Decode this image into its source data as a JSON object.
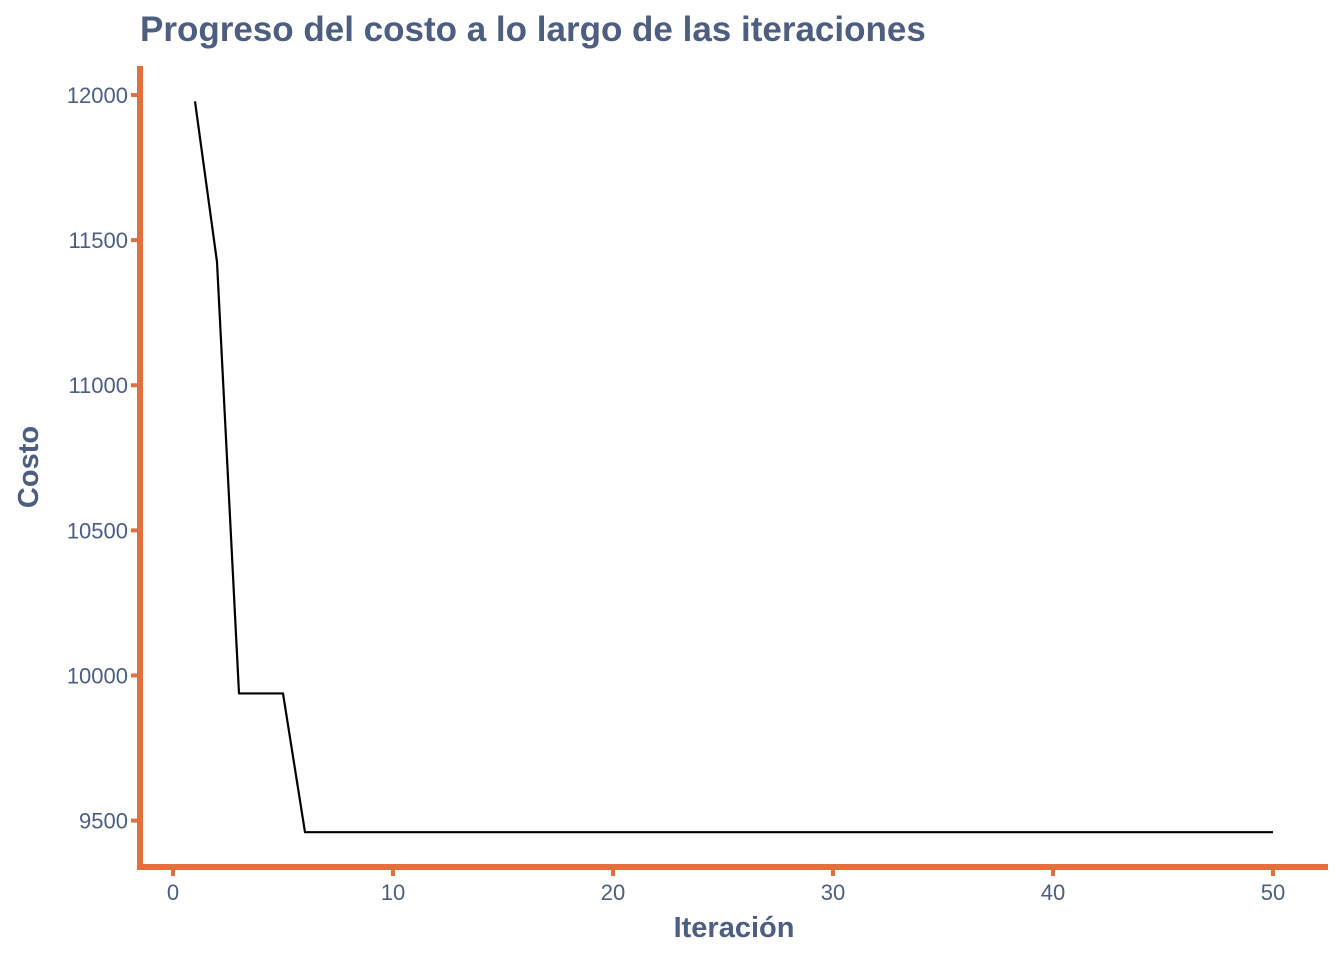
{
  "chart_data": {
    "type": "line",
    "title": "Progreso del costo a lo largo de las iteraciones",
    "xlabel": "Iteración",
    "ylabel": "Costo",
    "xlim": [
      -1.5,
      52.5
    ],
    "ylim": [
      9340,
      12100
    ],
    "x_ticks": [
      0,
      10,
      20,
      30,
      40,
      50
    ],
    "y_ticks": [
      9500,
      10000,
      10500,
      11000,
      11500,
      12000
    ],
    "grid": false,
    "legend": "none",
    "colors": {
      "text": "#4d5e80",
      "axis": "#e0703d",
      "line": "#000000",
      "background": "#ffffff"
    },
    "series": [
      {
        "x": [
          1,
          2,
          3,
          4,
          5,
          6,
          7,
          8,
          9,
          10,
          11,
          12,
          13,
          14,
          15,
          16,
          17,
          18,
          19,
          20,
          21,
          22,
          23,
          24,
          25,
          26,
          27,
          28,
          29,
          30,
          31,
          32,
          33,
          34,
          35,
          36,
          37,
          38,
          39,
          40,
          41,
          42,
          43,
          44,
          45,
          46,
          47,
          48,
          49,
          50
        ],
        "values": [
          11978,
          11425,
          9938,
          9938,
          9938,
          9460,
          9460,
          9460,
          9460,
          9460,
          9460,
          9460,
          9460,
          9460,
          9460,
          9460,
          9460,
          9460,
          9460,
          9460,
          9460,
          9460,
          9460,
          9460,
          9460,
          9460,
          9460,
          9460,
          9460,
          9460,
          9460,
          9460,
          9460,
          9460,
          9460,
          9460,
          9460,
          9460,
          9460,
          9460,
          9460,
          9460,
          9460,
          9460,
          9460,
          9460,
          9460,
          9460,
          9460,
          9460
        ]
      }
    ]
  }
}
